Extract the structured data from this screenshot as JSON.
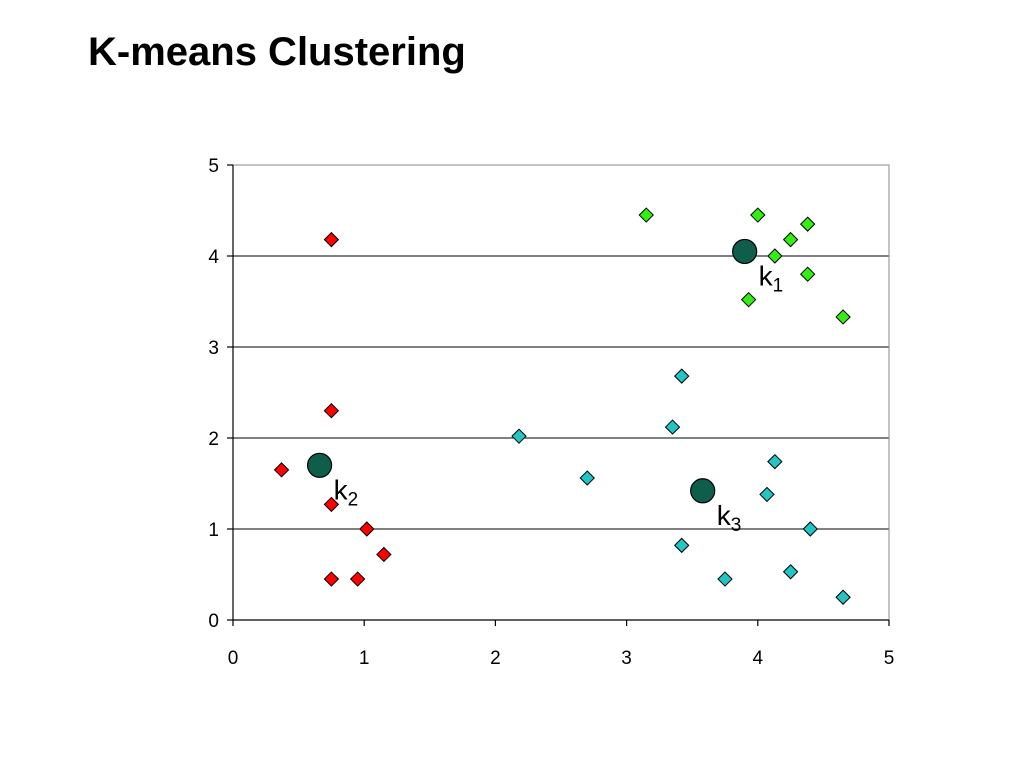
{
  "slide": {
    "title": "K-means Clustering"
  },
  "colors": {
    "cluster1": "#33ee11",
    "cluster2": "#ff0000",
    "cluster3": "#22c4c4",
    "centroid": "#0f5e4c",
    "grid": "#000000"
  },
  "chart_data": {
    "type": "scatter",
    "title": "",
    "xlabel": "",
    "ylabel": "",
    "xlim": [
      0,
      5
    ],
    "ylim": [
      0,
      5
    ],
    "xticks": [
      0,
      1,
      2,
      3,
      4,
      5
    ],
    "yticks": [
      0,
      1,
      2,
      3,
      4,
      5
    ],
    "grid": "horizontal",
    "series": [
      {
        "color": "#33ee11",
        "marker": "diamond",
        "points": [
          [
            3.15,
            4.45
          ],
          [
            4.0,
            4.45
          ],
          [
            4.38,
            4.35
          ],
          [
            4.25,
            4.18
          ],
          [
            4.13,
            4.0
          ],
          [
            4.38,
            3.8
          ],
          [
            3.93,
            3.52
          ],
          [
            4.65,
            3.33
          ]
        ]
      },
      {
        "color": "#ff0000",
        "marker": "diamond",
        "points": [
          [
            0.75,
            4.18
          ],
          [
            0.75,
            2.3
          ],
          [
            0.37,
            1.65
          ],
          [
            0.75,
            1.27
          ],
          [
            1.02,
            1.0
          ],
          [
            1.15,
            0.72
          ],
          [
            0.75,
            0.45
          ],
          [
            0.95,
            0.45
          ]
        ]
      },
      {
        "color": "#22c4c4",
        "marker": "diamond",
        "points": [
          [
            3.42,
            2.68
          ],
          [
            2.18,
            2.02
          ],
          [
            3.35,
            2.12
          ],
          [
            2.7,
            1.56
          ],
          [
            4.13,
            1.74
          ],
          [
            4.07,
            1.38
          ],
          [
            4.4,
            1.0
          ],
          [
            3.42,
            0.82
          ],
          [
            4.25,
            0.53
          ],
          [
            3.75,
            0.45
          ],
          [
            4.65,
            0.25
          ]
        ]
      }
    ],
    "centroids": [
      {
        "label": "k",
        "subscript": "1",
        "x": 3.9,
        "y": 4.05
      },
      {
        "label": "k",
        "subscript": "2",
        "x": 0.66,
        "y": 1.7
      },
      {
        "label": "k",
        "subscript": "3",
        "x": 3.58,
        "y": 1.42
      }
    ]
  }
}
